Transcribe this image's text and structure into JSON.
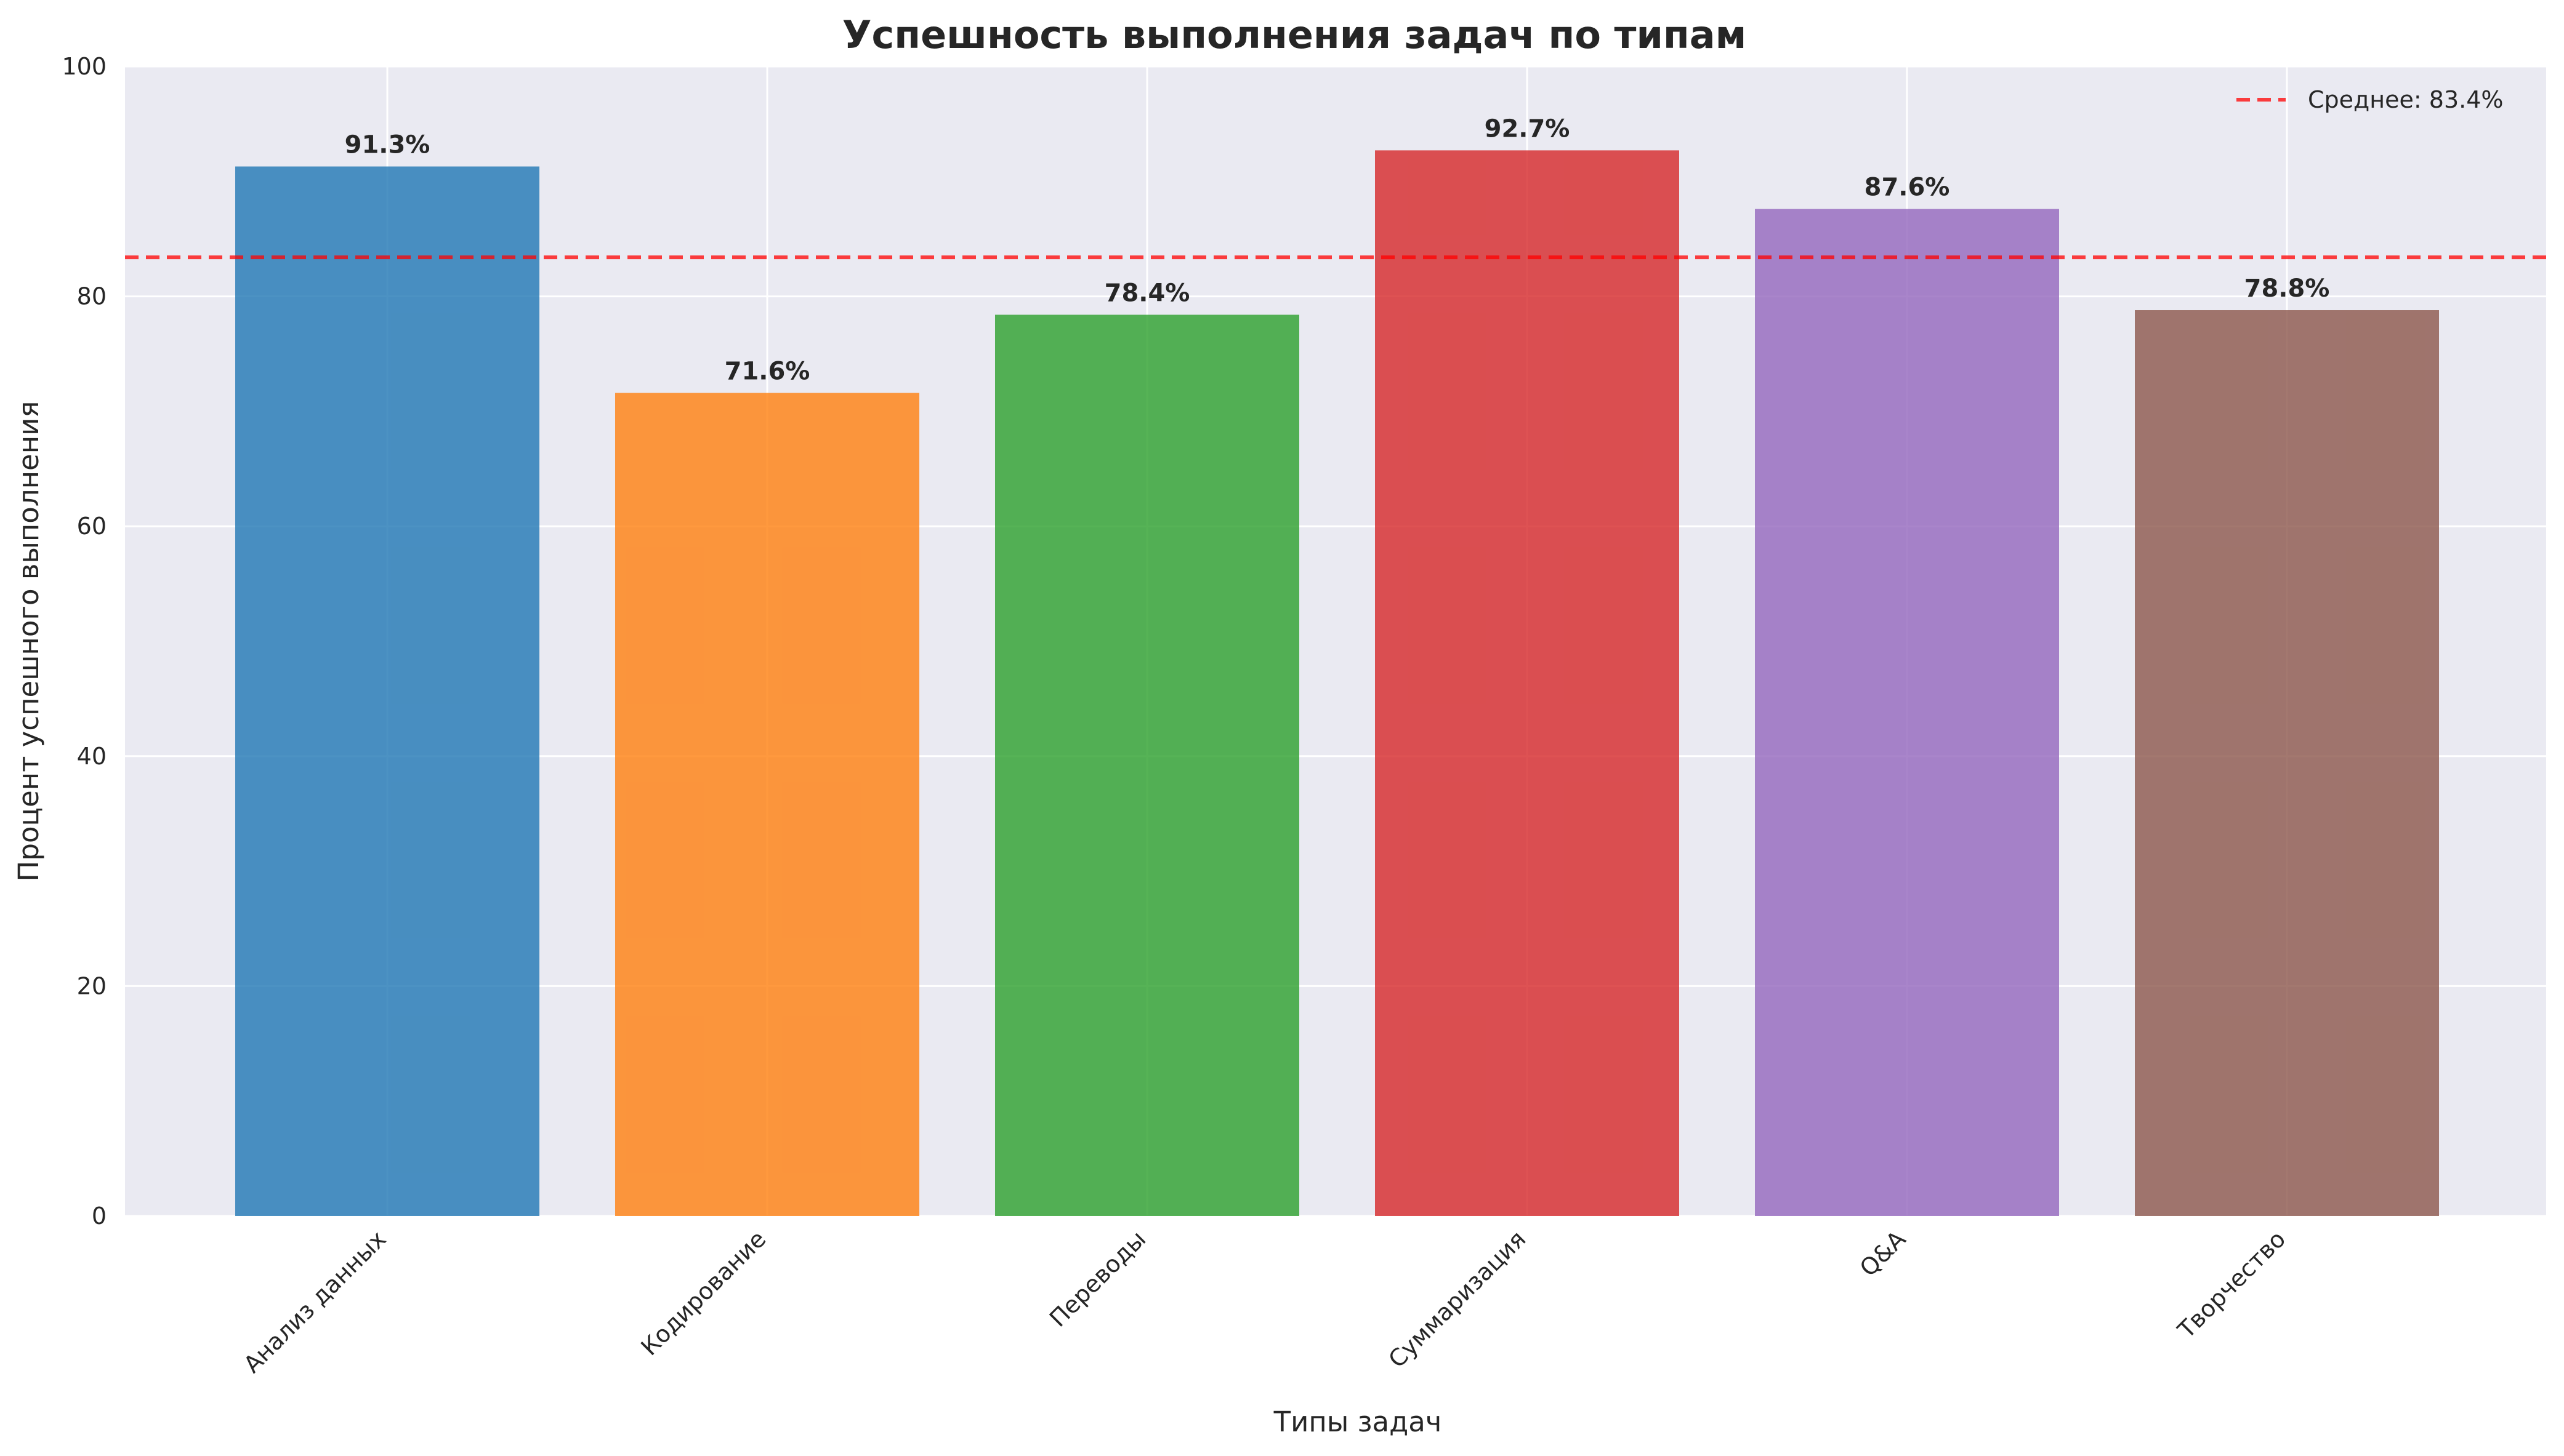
{
  "chart_data": {
    "type": "bar",
    "title": "Успешность выполнения задач по типам",
    "xlabel": "Типы задач",
    "ylabel": "Процент успешного выполнения",
    "categories": [
      "Анализ данных",
      "Кодирование",
      "Переводы",
      "Суммаризация",
      "Q&A",
      "Творчество"
    ],
    "values": [
      91.3,
      71.6,
      78.4,
      92.7,
      87.6,
      78.8
    ],
    "data_labels": [
      "91.3%",
      "71.6%",
      "78.4%",
      "92.7%",
      "87.6%",
      "78.8%"
    ],
    "colors": [
      "#1f77b4",
      "#ff7f0e",
      "#2ca02c",
      "#d62728",
      "#9467bd",
      "#8c564b"
    ],
    "ylim": [
      0,
      100
    ],
    "yticks": [
      0,
      20,
      40,
      60,
      80,
      100
    ],
    "grid": true,
    "legend_position": "top-right",
    "reference_line": {
      "value": 83.4,
      "label": "Среднее: 83.4%",
      "color": "#ff0000",
      "style": "dashed"
    }
  }
}
